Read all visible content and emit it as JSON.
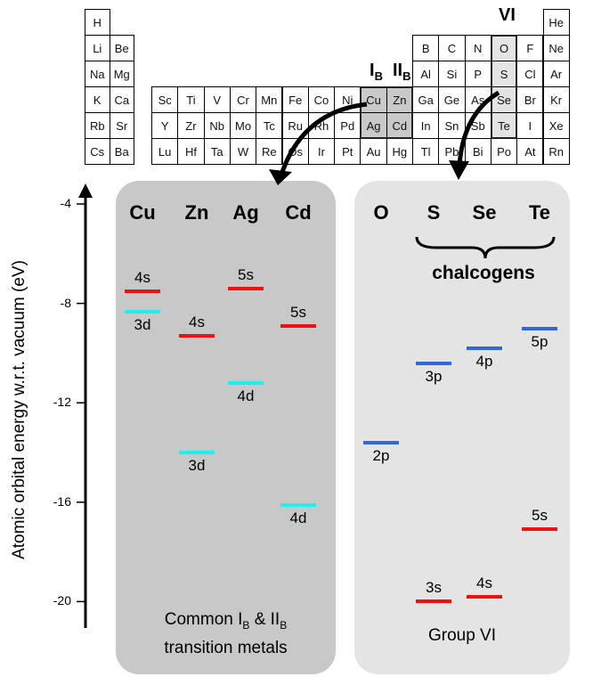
{
  "periodic_table": {
    "rows": [
      [
        "H",
        null,
        null,
        null,
        null,
        null,
        null,
        null,
        null,
        null,
        null,
        null,
        null,
        null,
        null,
        null,
        null,
        "He"
      ],
      [
        "Li",
        "Be",
        null,
        null,
        null,
        null,
        null,
        null,
        null,
        null,
        null,
        null,
        "B",
        "C",
        "N",
        "O",
        "F",
        "Ne"
      ],
      [
        "Na",
        "Mg",
        null,
        null,
        null,
        null,
        null,
        null,
        null,
        null,
        null,
        null,
        "Al",
        "Si",
        "P",
        "S",
        "Cl",
        "Ar"
      ],
      [
        "K",
        "Ca",
        "Sc",
        "Ti",
        "V",
        "Cr",
        "Mn",
        "Fe",
        "Co",
        "Ni",
        "Cu",
        "Zn",
        "Ga",
        "Ge",
        "As",
        "Se",
        "Br",
        "Kr"
      ],
      [
        "Rb",
        "Sr",
        "Y",
        "Zr",
        "Nb",
        "Mo",
        "Tc",
        "Ru",
        "Rh",
        "Pd",
        "Ag",
        "Cd",
        "In",
        "Sn",
        "Sb",
        "Te",
        "I",
        "Xe"
      ],
      [
        "Cs",
        "Ba",
        "Lu",
        "Hf",
        "Ta",
        "W",
        "Re",
        "Os",
        "Ir",
        "Pt",
        "Au",
        "Hg",
        "Tl",
        "Pb",
        "Bi",
        "Po",
        "At",
        "Rn"
      ]
    ],
    "group_labels": {
      "ib": "I",
      "ib_sub": "B",
      "iib": "II",
      "iib_sub": "B",
      "vi": "VI"
    }
  },
  "chart_data": {
    "type": "energy-level diagram",
    "ylabel": "Atomic orbital energy w.r.t. vacuum (eV)",
    "yticks": [
      -4,
      -8,
      -12,
      -16,
      -20
    ],
    "ylim": [
      -21,
      -3
    ],
    "colors": {
      "s": "#ee1111",
      "d": "#22eeee",
      "p": "#3366dd"
    },
    "panels": [
      {
        "label_line1": "Common I",
        "sub1": "B",
        "amp": " & II",
        "sub2": "B",
        "label_line2": "transition metals",
        "elements": [
          {
            "name": "Cu",
            "levels": [
              {
                "orbital": "4s",
                "type": "s",
                "energy": -7.5,
                "label_pos": "above"
              },
              {
                "orbital": "3d",
                "type": "d",
                "energy": -8.35,
                "label_pos": "below"
              }
            ]
          },
          {
            "name": "Zn",
            "levels": [
              {
                "orbital": "4s",
                "type": "s",
                "energy": -9.3,
                "label_pos": "above"
              },
              {
                "orbital": "3d",
                "type": "d",
                "energy": -14.0,
                "label_pos": "below"
              }
            ]
          },
          {
            "name": "Ag",
            "levels": [
              {
                "orbital": "5s",
                "type": "s",
                "energy": -7.4,
                "label_pos": "above"
              },
              {
                "orbital": "4d",
                "type": "d",
                "energy": -11.2,
                "label_pos": "below"
              }
            ]
          },
          {
            "name": "Cd",
            "levels": [
              {
                "orbital": "5s",
                "type": "s",
                "energy": -8.9,
                "label_pos": "above"
              },
              {
                "orbital": "4d",
                "type": "d",
                "energy": -16.1,
                "label_pos": "below"
              }
            ]
          }
        ]
      },
      {
        "label_line1": "Group VI",
        "bracket_label": "chalcogens",
        "elements": [
          {
            "name": "O",
            "levels": [
              {
                "orbital": "2p",
                "type": "p",
                "energy": -13.6,
                "label_pos": "below"
              }
            ]
          },
          {
            "name": "S",
            "levels": [
              {
                "orbital": "3p",
                "type": "p",
                "energy": -10.4,
                "label_pos": "below"
              },
              {
                "orbital": "3s",
                "type": "s",
                "energy": -20.0,
                "label_pos": "above"
              }
            ]
          },
          {
            "name": "Se",
            "levels": [
              {
                "orbital": "4p",
                "type": "p",
                "energy": -9.8,
                "label_pos": "below"
              },
              {
                "orbital": "4s",
                "type": "s",
                "energy": -19.8,
                "label_pos": "above"
              }
            ]
          },
          {
            "name": "Te",
            "levels": [
              {
                "orbital": "5p",
                "type": "p",
                "energy": -9.0,
                "label_pos": "below"
              },
              {
                "orbital": "5s",
                "type": "s",
                "energy": -17.1,
                "label_pos": "above"
              }
            ]
          }
        ]
      }
    ]
  }
}
